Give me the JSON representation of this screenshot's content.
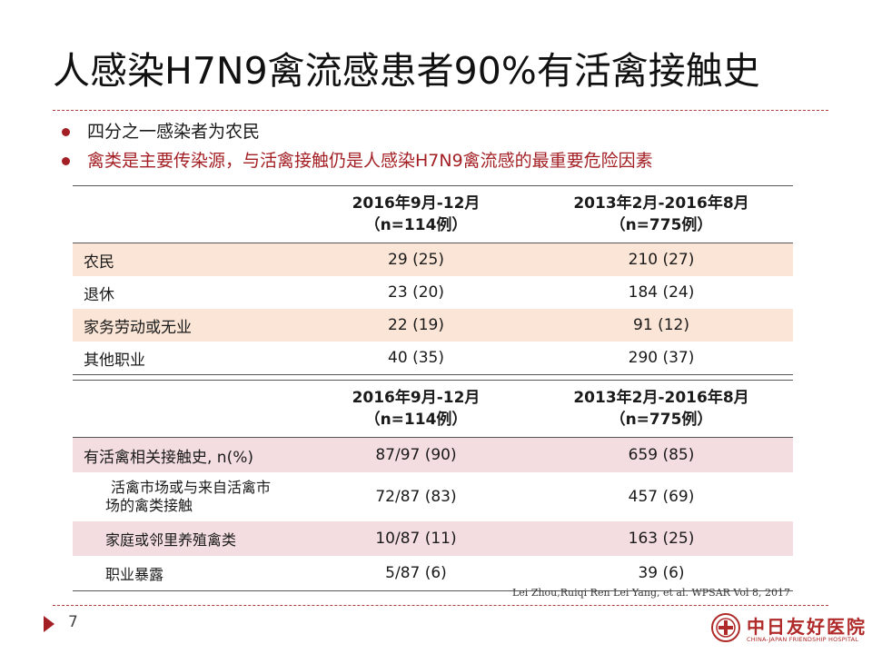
{
  "slide": {
    "title": "人感染H7N9禽流感患者90%有活禽接触史",
    "bullets": [
      {
        "text": "四分之一感染者为农民"
      },
      {
        "text": "禽类是主要传染源，与活禽接触仍是人感染H7N9禽流感的最重要危险因素"
      }
    ],
    "colors": {
      "accent": "#a31f24",
      "row_shade_1": "#fbe5d6",
      "row_shade_2": "#f4dde1"
    }
  },
  "table1": {
    "headers": [
      {
        "line1": "2016年9月-12月",
        "line2": "（n=114例）"
      },
      {
        "line1": "2013年2月-2016年8月",
        "line2": "（n=775例）"
      }
    ],
    "rows": [
      {
        "label": "农民",
        "v1": "29 (25)",
        "v2": "210 (27)"
      },
      {
        "label": "退休",
        "v1": "23 (20)",
        "v2": "184 (24)"
      },
      {
        "label": "家务劳动或无业",
        "v1": "22 (19)",
        "v2": "91 (12)"
      },
      {
        "label": "其他职业",
        "v1": "40 (35)",
        "v2": "290 (37)"
      }
    ]
  },
  "table2": {
    "headers": [
      {
        "line1": "2016年9月-12月",
        "line2": "（n=114例）"
      },
      {
        "line1": "2013年2月-2016年8月",
        "line2": "（n=775例）"
      }
    ],
    "rows": [
      {
        "label": "有活禽相关接触史, n(%)",
        "v1": "87/97 (90)",
        "v2": "659 (85)"
      },
      {
        "label_line1": "活禽市场或与来自活禽市",
        "label_line2": "场的禽类接触",
        "v1": "72/87 (83)",
        "v2": "457 (69)"
      },
      {
        "label": "家庭或邻里养殖禽类",
        "v1": "10/87 (11)",
        "v2": "163 (25)"
      },
      {
        "label": "职业暴露",
        "v1": "5/87 (6)",
        "v2": "39 (6)"
      }
    ]
  },
  "citation": "Lei Zhou,Ruiqi Ren Lei Yang, et al. WPSAR Vol 8, 2017",
  "footer": {
    "page_number": "7",
    "logo_cn": "中日友好医院",
    "logo_en": "CHINA-JAPAN FRIENDSHIP HOSPITAL"
  }
}
